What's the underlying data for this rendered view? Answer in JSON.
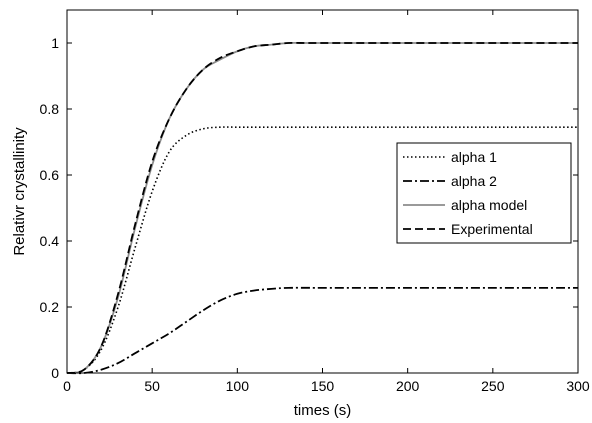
{
  "chart_data": {
    "type": "line",
    "title": "",
    "xlabel": "times (s)",
    "ylabel": "Relativr crystallinity",
    "xlim": [
      0,
      300
    ],
    "ylim": [
      0,
      1.1
    ],
    "xticks": [
      "0",
      "50",
      "100",
      "150",
      "200",
      "250",
      "300"
    ],
    "yticks": [
      "0",
      "0.2",
      "0.4",
      "0.6",
      "0.8",
      "1"
    ],
    "grid": false,
    "legend_position": "right",
    "series": [
      {
        "name": "alpha 1",
        "style": "dotted",
        "color": "#000000",
        "x": [
          0,
          10,
          20,
          30,
          40,
          50,
          60,
          70,
          80,
          90,
          100,
          120,
          150,
          200,
          250,
          300
        ],
        "y": [
          0,
          0.01,
          0.07,
          0.2,
          0.38,
          0.55,
          0.67,
          0.72,
          0.74,
          0.745,
          0.745,
          0.745,
          0.745,
          0.745,
          0.745,
          0.745
        ]
      },
      {
        "name": "alpha 2",
        "style": "dashdot",
        "color": "#000000",
        "x": [
          0,
          10,
          20,
          30,
          40,
          50,
          60,
          70,
          80,
          90,
          100,
          110,
          120,
          130,
          150,
          200,
          250,
          300
        ],
        "y": [
          0,
          0.0,
          0.01,
          0.03,
          0.06,
          0.09,
          0.12,
          0.155,
          0.19,
          0.22,
          0.24,
          0.25,
          0.255,
          0.258,
          0.258,
          0.258,
          0.258,
          0.258
        ]
      },
      {
        "name": "alpha model",
        "style": "solid",
        "color": "#8c8c8c",
        "x": [
          0,
          10,
          20,
          30,
          40,
          50,
          60,
          70,
          80,
          90,
          100,
          110,
          120,
          130,
          140,
          150,
          200,
          250,
          300
        ],
        "y": [
          0,
          0.01,
          0.08,
          0.23,
          0.44,
          0.63,
          0.77,
          0.86,
          0.92,
          0.95,
          0.975,
          0.99,
          0.995,
          1.0,
          1.0,
          1.0,
          1.0,
          1.0,
          1.0
        ]
      },
      {
        "name": "Experimental",
        "style": "dashed",
        "color": "#000000",
        "x": [
          0,
          10,
          20,
          30,
          40,
          50,
          60,
          70,
          80,
          90,
          100,
          110,
          120,
          130,
          140,
          150,
          200,
          250,
          300
        ],
        "y": [
          0,
          0.01,
          0.08,
          0.24,
          0.45,
          0.64,
          0.77,
          0.86,
          0.92,
          0.955,
          0.975,
          0.99,
          0.995,
          1.0,
          1.0,
          1.0,
          1.0,
          1.0,
          1.0
        ]
      }
    ]
  }
}
